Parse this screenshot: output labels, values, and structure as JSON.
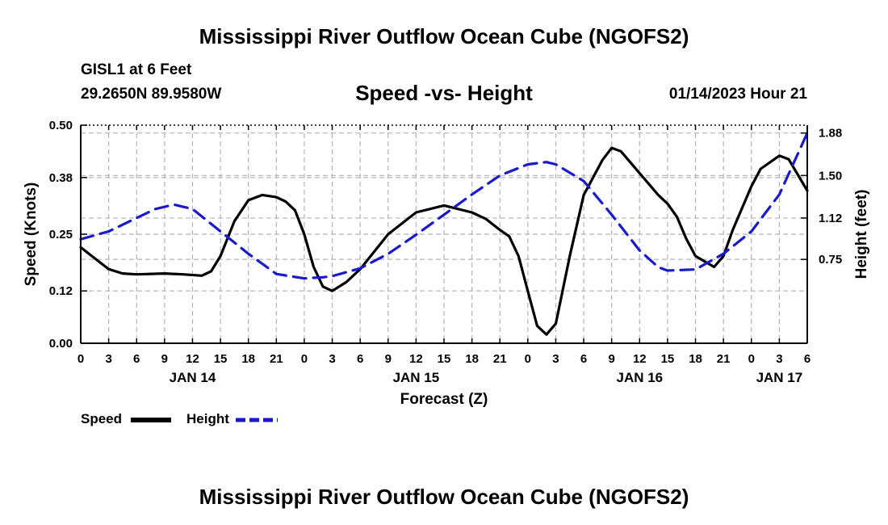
{
  "title": "Mississippi River Outflow Ocean Cube (NGOFS2)",
  "bottom_title": "Mississippi River Outflow Ocean Cube (NGOFS2)",
  "station": "GISL1 at 6 Feet",
  "coordinates": "29.2650N  89.9580W",
  "subtitle": "Speed -vs- Height",
  "timestamp": "01/14/2023 Hour 21",
  "colors": {
    "speed": "#000000",
    "height": "#1a1acc",
    "grid": "#b4b4b4"
  },
  "legend": {
    "speed_label": "Speed",
    "height_label": "Height"
  },
  "chart_data": {
    "type": "line",
    "xlabel": "Forecast (Z)",
    "ylabel": "Speed (Knots)",
    "y2label": "Height (feet)",
    "xlim": [
      0,
      78
    ],
    "ylim": [
      0,
      0.5
    ],
    "y2lim": [
      0,
      1.95
    ],
    "x_ticks": [
      0,
      3,
      6,
      9,
      12,
      15,
      18,
      21,
      24,
      27,
      30,
      33,
      36,
      39,
      42,
      45,
      48,
      51,
      54,
      57,
      60,
      63,
      66,
      69,
      72,
      75,
      78
    ],
    "x_tick_labels": [
      "0",
      "3",
      "6",
      "9",
      "12",
      "15",
      "18",
      "21",
      "0",
      "3",
      "6",
      "9",
      "12",
      "15",
      "18",
      "21",
      "0",
      "3",
      "6",
      "9",
      "12",
      "15",
      "18",
      "21",
      "0",
      "3",
      "6"
    ],
    "date_labels": [
      {
        "x": 12,
        "label": "JAN 14"
      },
      {
        "x": 36,
        "label": "JAN 15"
      },
      {
        "x": 60,
        "label": "JAN 16"
      },
      {
        "x": 75,
        "label": "JAN 17"
      }
    ],
    "y_ticks": [
      0.0,
      0.12,
      0.25,
      0.38,
      0.5
    ],
    "y_tick_labels": [
      "0.00",
      "0.12",
      "0.25",
      "0.38",
      "0.50"
    ],
    "y2_ticks": [
      0.75,
      1.12,
      1.5,
      1.88
    ],
    "y2_tick_labels": [
      "0.75",
      "1.12",
      "1.50",
      "1.88"
    ],
    "series": [
      {
        "name": "Speed",
        "axis": "left",
        "style": "solid",
        "x": [
          0,
          1.5,
          3,
          4.5,
          6,
          9,
          11,
          13,
          14,
          15,
          16.5,
          18,
          19.5,
          21,
          22,
          23,
          24,
          25,
          26,
          27,
          28.5,
          30,
          33,
          36,
          39,
          42,
          43.5,
          45,
          46,
          47,
          48,
          49,
          50,
          51,
          52.5,
          54,
          56,
          57,
          58,
          60,
          62,
          63,
          64,
          65,
          66,
          68,
          69,
          70,
          72,
          73,
          75,
          76,
          78
        ],
        "y": [
          0.22,
          0.195,
          0.17,
          0.16,
          0.158,
          0.16,
          0.158,
          0.155,
          0.165,
          0.2,
          0.28,
          0.328,
          0.34,
          0.335,
          0.325,
          0.305,
          0.25,
          0.175,
          0.13,
          0.12,
          0.14,
          0.17,
          0.25,
          0.3,
          0.316,
          0.3,
          0.285,
          0.26,
          0.245,
          0.2,
          0.12,
          0.04,
          0.02,
          0.045,
          0.2,
          0.34,
          0.42,
          0.448,
          0.44,
          0.39,
          0.34,
          0.32,
          0.29,
          0.24,
          0.2,
          0.175,
          0.2,
          0.26,
          0.36,
          0.4,
          0.43,
          0.422,
          0.35
        ]
      },
      {
        "name": "Height",
        "axis": "right",
        "style": "dashed",
        "x": [
          0,
          3,
          6,
          8,
          10,
          12,
          15,
          18,
          21,
          24,
          26,
          27,
          30,
          33,
          36,
          39,
          42,
          45,
          48,
          50,
          51,
          54,
          57,
          60,
          62,
          63,
          66,
          69,
          72,
          75,
          78
        ],
        "y": [
          0.93,
          1.0,
          1.12,
          1.2,
          1.24,
          1.2,
          1.0,
          0.8,
          0.62,
          0.58,
          0.59,
          0.6,
          0.67,
          0.8,
          0.97,
          1.15,
          1.33,
          1.5,
          1.6,
          1.62,
          1.6,
          1.45,
          1.15,
          0.83,
          0.68,
          0.65,
          0.66,
          0.8,
          1.0,
          1.33,
          1.88
        ]
      }
    ]
  }
}
